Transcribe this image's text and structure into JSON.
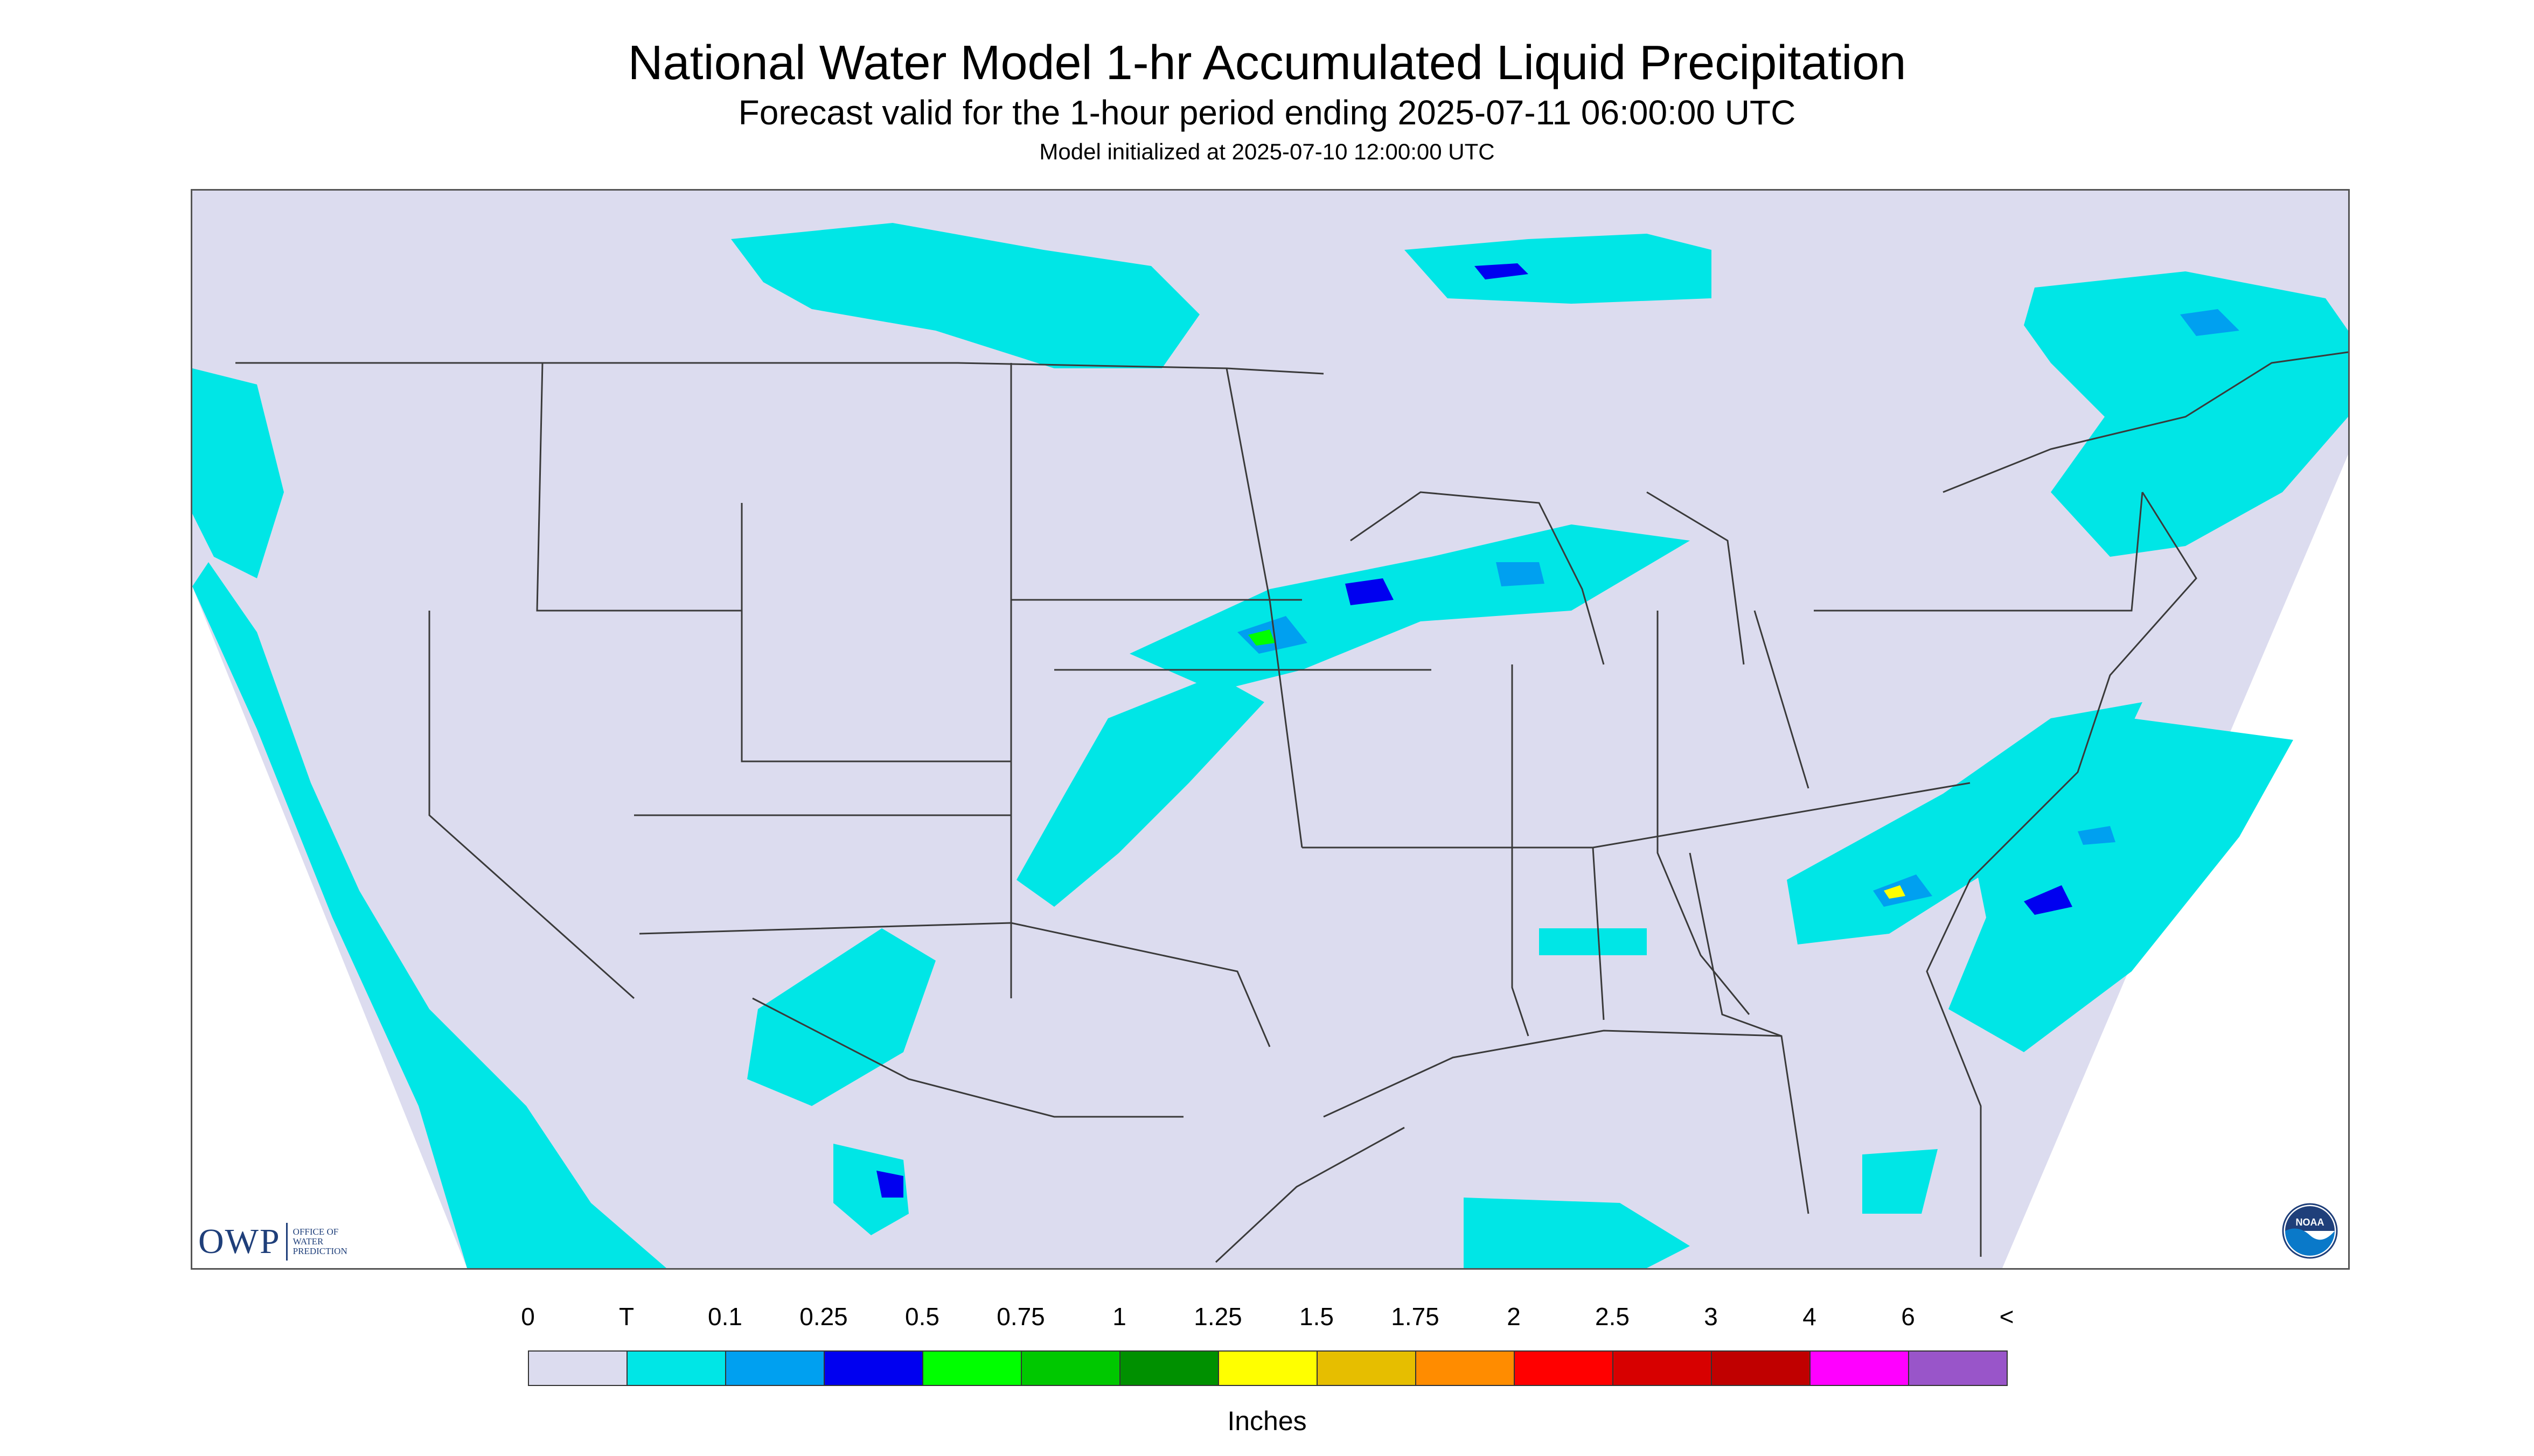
{
  "title": "National Water Model 1-hr Accumulated Liquid Precipitation",
  "subtitle": "Forecast valid for the 1-hour period ending 2025-07-11 06:00:00 UTC",
  "init_text": "Model initialized at 2025-07-10 12:00:00 UTC",
  "logo": {
    "owp": "OWP",
    "owp_sub": [
      "OFFICE OF",
      "WATER",
      "PREDICTION"
    ],
    "noaa": "NOAA"
  },
  "legend": {
    "labels": [
      "0",
      "T",
      "0.1",
      "0.25",
      "0.5",
      "0.75",
      "1",
      "1.25",
      "1.5",
      "1.75",
      "2",
      "2.5",
      "3",
      "4",
      "6",
      "<"
    ],
    "colors": [
      "#dcdcef",
      "#00e6e6",
      "#00a0f0",
      "#0000f0",
      "#00ff00",
      "#00c800",
      "#009000",
      "#ffff00",
      "#e6be00",
      "#ff8c00",
      "#ff0000",
      "#d70000",
      "#c00000",
      "#ff00ff",
      "#9955c9"
    ],
    "unit": "Inches"
  },
  "colors": {
    "land_background": "#dcdcef",
    "trace": "#00e6e6",
    "outline": "#3a3a3a"
  }
}
